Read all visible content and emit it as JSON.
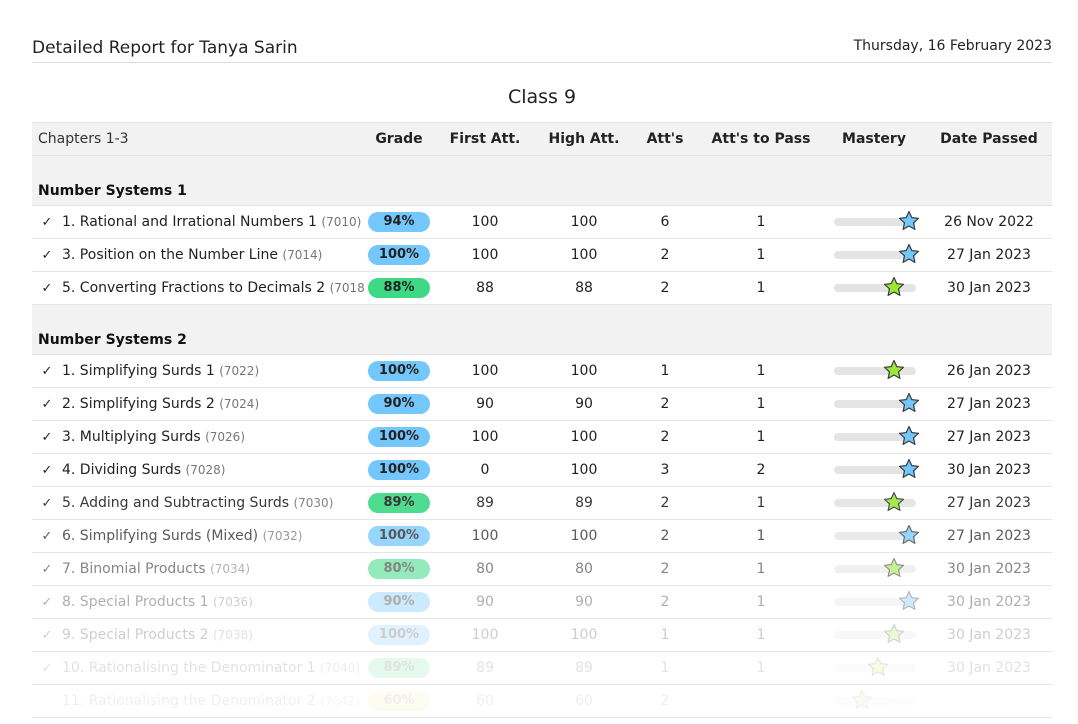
{
  "report": {
    "title": "Detailed Report for Tanya Sarin",
    "date": "Thursday, 16 February 2023",
    "class_name": "Class 9"
  },
  "table": {
    "headers": {
      "chapters": "Chapters 1-3",
      "grade": "Grade",
      "first_att": "First Att.",
      "high_att": "High Att.",
      "atts": "Att's",
      "atts_to_pass": "Att's to Pass",
      "mastery": "Mastery",
      "date_passed": "Date Passed"
    },
    "sections": [
      {
        "title": "Number Systems 1",
        "rows": [
          {
            "check": "✓",
            "name": "1. Rational and Irrational Numbers 1",
            "code": "(7010)",
            "grade": "94%",
            "grade_color": "#74c7fb",
            "first": "100",
            "high": "100",
            "atts": "6",
            "to_pass": "1",
            "mastery_level": 0.95,
            "star_color": "#74c7fb",
            "date": "26 Nov 2022",
            "opacity": 1
          },
          {
            "check": "✓",
            "name": "3. Position on the Number Line",
            "code": "(7014)",
            "grade": "100%",
            "grade_color": "#74c7fb",
            "first": "100",
            "high": "100",
            "atts": "2",
            "to_pass": "1",
            "mastery_level": 0.95,
            "star_color": "#74c7fb",
            "date": "27 Jan 2023",
            "opacity": 1
          },
          {
            "check": "✓",
            "name": "5. Converting Fractions to Decimals 2",
            "code": "(7018)",
            "grade": "88%",
            "grade_color": "#3ed985",
            "first": "88",
            "high": "88",
            "atts": "2",
            "to_pass": "1",
            "mastery_level": 0.75,
            "star_color": "#9be83a",
            "date": "30 Jan 2023",
            "opacity": 1
          }
        ]
      },
      {
        "title": "Number Systems 2",
        "rows": [
          {
            "check": "✓",
            "name": "1. Simplifying Surds 1",
            "code": "(7022)",
            "grade": "100%",
            "grade_color": "#74c7fb",
            "first": "100",
            "high": "100",
            "atts": "1",
            "to_pass": "1",
            "mastery_level": 0.75,
            "star_color": "#9be83a",
            "date": "26 Jan 2023",
            "opacity": 1
          },
          {
            "check": "✓",
            "name": "2. Simplifying Surds 2",
            "code": "(7024)",
            "grade": "90%",
            "grade_color": "#74c7fb",
            "first": "90",
            "high": "90",
            "atts": "2",
            "to_pass": "1",
            "mastery_level": 0.95,
            "star_color": "#74c7fb",
            "date": "27 Jan 2023",
            "opacity": 1
          },
          {
            "check": "✓",
            "name": "3. Multiplying Surds",
            "code": "(7026)",
            "grade": "100%",
            "grade_color": "#74c7fb",
            "first": "100",
            "high": "100",
            "atts": "2",
            "to_pass": "1",
            "mastery_level": 0.95,
            "star_color": "#74c7fb",
            "date": "27 Jan 2023",
            "opacity": 1
          },
          {
            "check": "✓",
            "name": "4. Dividing Surds",
            "code": "(7028)",
            "grade": "100%",
            "grade_color": "#74c7fb",
            "first": "0",
            "high": "100",
            "atts": "3",
            "to_pass": "2",
            "mastery_level": 0.95,
            "star_color": "#74c7fb",
            "date": "30 Jan 2023",
            "opacity": 1
          },
          {
            "check": "✓",
            "name": "5. Adding and Subtracting Surds",
            "code": "(7030)",
            "grade": "89%",
            "grade_color": "#3ed985",
            "first": "89",
            "high": "89",
            "atts": "2",
            "to_pass": "1",
            "mastery_level": 0.75,
            "star_color": "#9be83a",
            "date": "27 Jan 2023",
            "opacity": 0.9
          },
          {
            "check": "✓",
            "name": "6. Simplifying Surds (Mixed)",
            "code": "(7032)",
            "grade": "100%",
            "grade_color": "#74c7fb",
            "first": "100",
            "high": "100",
            "atts": "2",
            "to_pass": "1",
            "mastery_level": 0.95,
            "star_color": "#74c7fb",
            "date": "27 Jan 2023",
            "opacity": 0.75
          },
          {
            "check": "✓",
            "name": "7. Binomial Products",
            "code": "(7034)",
            "grade": "80%",
            "grade_color": "#3ed985",
            "first": "80",
            "high": "80",
            "atts": "2",
            "to_pass": "1",
            "mastery_level": 0.75,
            "star_color": "#9be83a",
            "date": "30 Jan 2023",
            "opacity": 0.55
          },
          {
            "check": "✓",
            "name": "8. Special Products 1",
            "code": "(7036)",
            "grade": "90%",
            "grade_color": "#74c7fb",
            "first": "90",
            "high": "90",
            "atts": "2",
            "to_pass": "1",
            "mastery_level": 0.95,
            "star_color": "#74c7fb",
            "date": "30 Jan 2023",
            "opacity": 0.36
          },
          {
            "check": "✓",
            "name": "9. Special Products 2",
            "code": "(7038)",
            "grade": "100%",
            "grade_color": "#74c7fb",
            "first": "100",
            "high": "100",
            "atts": "1",
            "to_pass": "1",
            "mastery_level": 0.75,
            "star_color": "#9be83a",
            "date": "30 Jan 2023",
            "opacity": 0.22
          },
          {
            "check": "✓",
            "name": "10. Rationalising the Denominator 1",
            "code": "(7040)",
            "grade": "89%",
            "grade_color": "#3ed985",
            "first": "89",
            "high": "89",
            "atts": "1",
            "to_pass": "1",
            "mastery_level": 0.55,
            "star_color": "#e8e23a",
            "date": "30 Jan 2023",
            "opacity": 0.13
          },
          {
            "check": "",
            "name": "11. Rationalising the Denominator 2",
            "code": "(7042)",
            "grade": "60%",
            "grade_color": "#f0e040",
            "first": "60",
            "high": "60",
            "atts": "2",
            "to_pass": "",
            "mastery_level": 0.35,
            "star_color": "#f0b040",
            "date": "",
            "opacity": 0.07
          }
        ]
      }
    ]
  }
}
